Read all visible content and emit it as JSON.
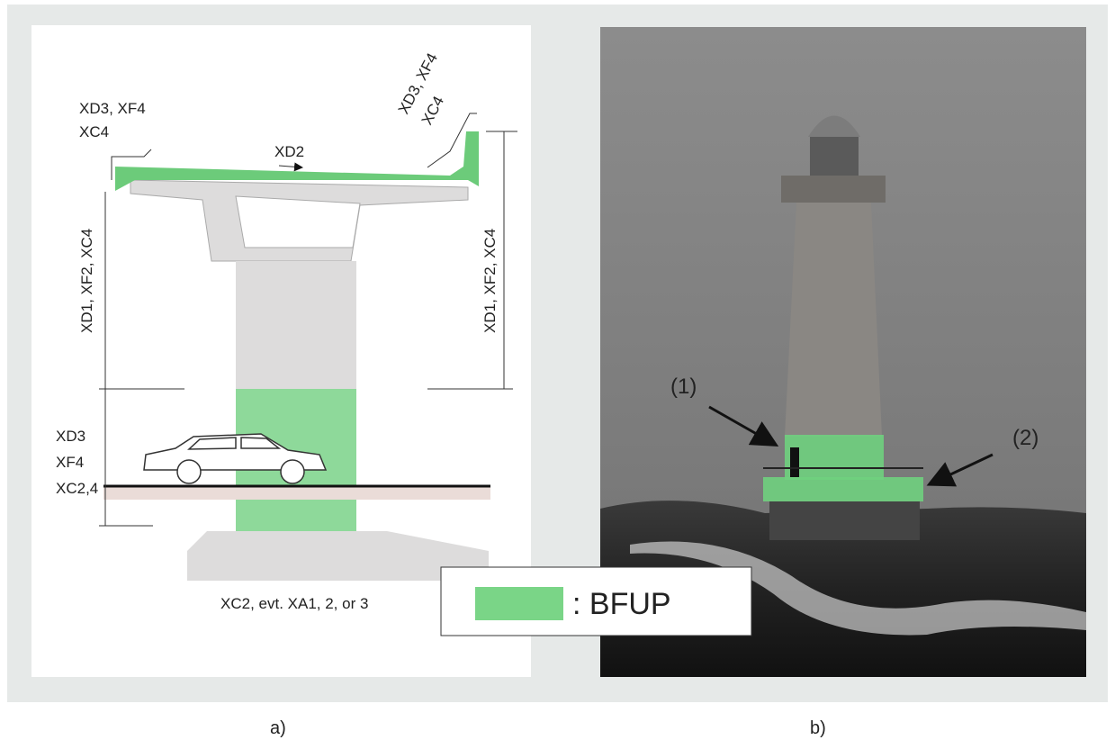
{
  "panel_a": {
    "top_left_label": [
      "XD3, XF4",
      "XC4"
    ],
    "deck_label": "XD2",
    "top_right_label": [
      "XD3, XF4",
      "XC4"
    ],
    "left_height_label": "XD1, XF2, XC4",
    "right_height_label": "XD1, XF2, XC4",
    "ground_label": [
      "XD3",
      "XF4",
      "XC2,4"
    ],
    "foundation_label": "XC2, evt. XA1, 2, or 3"
  },
  "panel_b": {
    "marker_1": "(1)",
    "marker_2": "(2)"
  },
  "legend": {
    "label": ": BFUP"
  },
  "captions": {
    "a": "a)",
    "b": "b)"
  }
}
